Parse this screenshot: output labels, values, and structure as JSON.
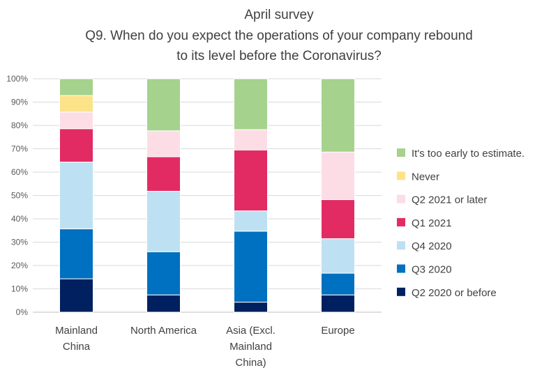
{
  "chart_data": {
    "type": "bar",
    "stacked": true,
    "title": [
      "April survey",
      "Q9. When do you expect the operations of your company rebound",
      "to its level before the Coronavirus?"
    ],
    "categories": [
      [
        "Mainland",
        "China"
      ],
      [
        "North America"
      ],
      [
        "Asia (Excl.",
        "Mainland",
        "China)"
      ],
      [
        "Europe"
      ]
    ],
    "yticks": [
      "0%",
      "10%",
      "20%",
      "30%",
      "40%",
      "50%",
      "60%",
      "70%",
      "80%",
      "90%",
      "100%"
    ],
    "ylim": [
      0,
      100
    ],
    "grid": true,
    "legend_position": "right",
    "series": [
      {
        "name": "Q2 2020 or before",
        "color": "#002060",
        "values": [
          14.3,
          7.4,
          4.3,
          7.4
        ]
      },
      {
        "name": "Q3 2020",
        "color": "#0070C0",
        "values": [
          21.4,
          18.5,
          30.4,
          9.3
        ]
      },
      {
        "name": "Q4 2020",
        "color": "#BDE1F2",
        "values": [
          28.6,
          25.9,
          8.7,
          14.8
        ]
      },
      {
        "name": "Q1 2021",
        "color": "#E32B63",
        "values": [
          14.3,
          14.8,
          26.1,
          16.7
        ]
      },
      {
        "name": "Q2 2021 or later",
        "color": "#FCDDE6",
        "values": [
          7.1,
          11.1,
          8.7,
          20.4
        ]
      },
      {
        "name": "Never",
        "color": "#FCE38A",
        "values": [
          7.1,
          0,
          0,
          0
        ]
      },
      {
        "name": "It's too early to estimate.",
        "color": "#A5D28C",
        "values": [
          7.2,
          22.3,
          21.8,
          31.4
        ]
      }
    ]
  }
}
